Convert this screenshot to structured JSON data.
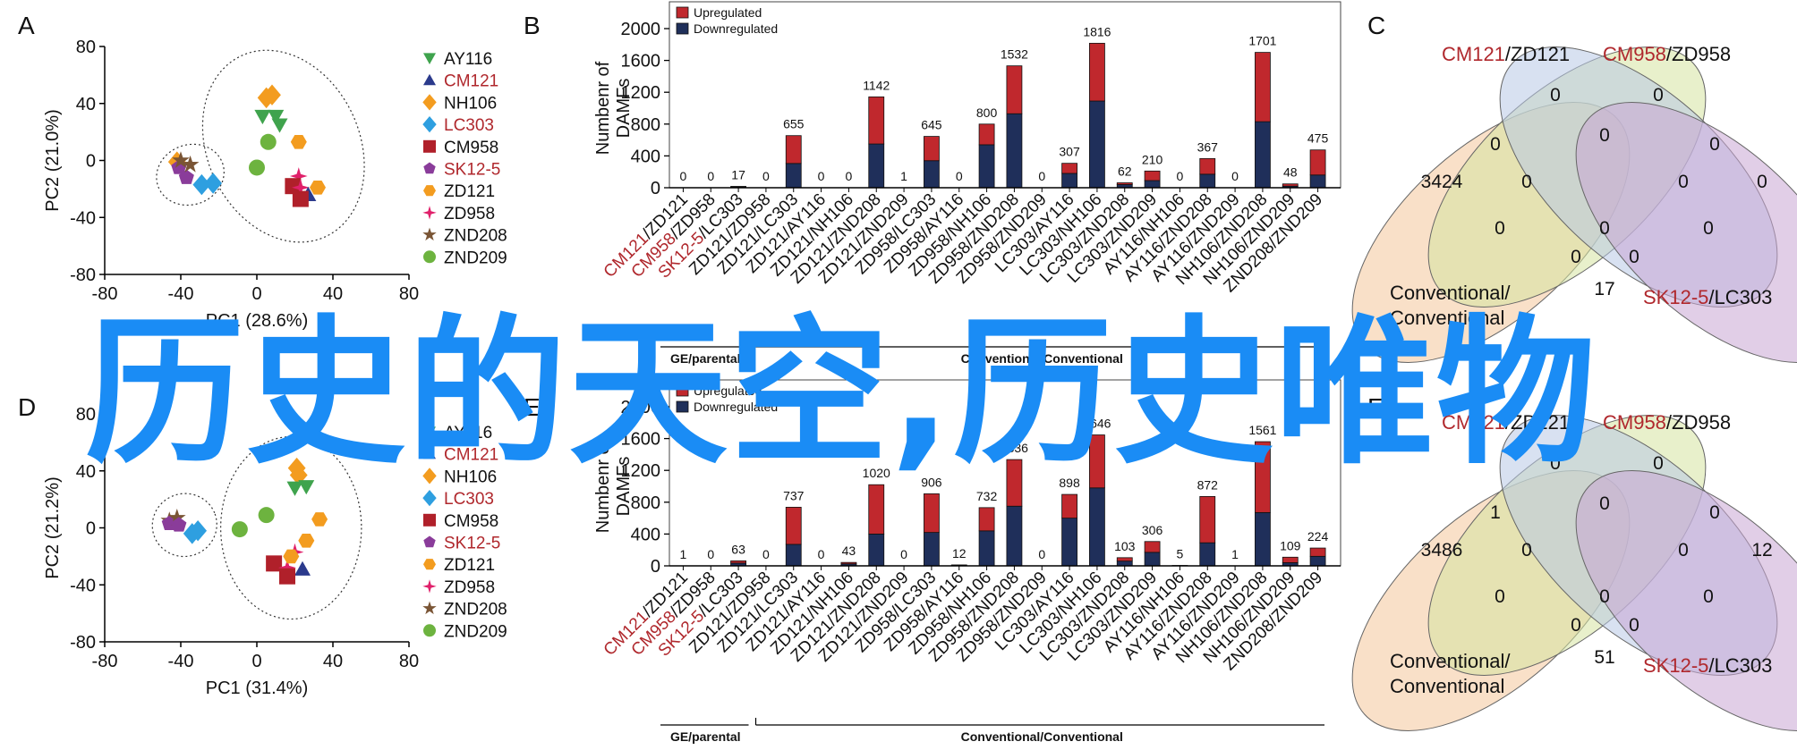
{
  "overlay_text": "历史的天空,历史唯物",
  "colors": {
    "red": "#c0282d",
    "navy": "#1f2f5a",
    "text_red": "#b0282d",
    "venn1": "#f4c69a",
    "venn2": "#d6e4a0",
    "venn3": "#b8c8e6",
    "venn4": "#c9a6d3"
  },
  "legend": [
    {
      "label": "AY116",
      "shape": "triangle-down",
      "color": "#3fa34d",
      "red": false
    },
    {
      "label": "CM121",
      "shape": "triangle-up",
      "color": "#2b3a8c",
      "red": true
    },
    {
      "label": "NH106",
      "shape": "diamond",
      "color": "#f39c1f",
      "red": false
    },
    {
      "label": "LC303",
      "shape": "diamond",
      "color": "#2e9fe0",
      "red": true
    },
    {
      "label": "CM958",
      "shape": "square",
      "color": "#b0202a",
      "red": false
    },
    {
      "label": "SK12-5",
      "shape": "pentagon",
      "color": "#8a3c9a",
      "red": true
    },
    {
      "label": "ZD121",
      "shape": "hexagon",
      "color": "#f39c1f",
      "red": false
    },
    {
      "label": "ZD958",
      "shape": "star4",
      "color": "#e0206a",
      "red": false
    },
    {
      "label": "ZND208",
      "shape": "star5",
      "color": "#7a5535",
      "red": false
    },
    {
      "label": "ZND209",
      "shape": "circle",
      "color": "#6db33f",
      "red": false
    }
  ],
  "bar_categories": [
    {
      "a": "CM121",
      "b": "ZD121",
      "red": true
    },
    {
      "a": "CM958",
      "b": "ZD958",
      "red": true
    },
    {
      "a": "SK12-5",
      "b": "LC303",
      "red": true
    },
    {
      "a": "ZD121",
      "b": "ZD958",
      "red": false
    },
    {
      "a": "ZD121",
      "b": "LC303",
      "red": false
    },
    {
      "a": "ZD121",
      "b": "AY116",
      "red": false
    },
    {
      "a": "ZD121",
      "b": "NH106",
      "red": false
    },
    {
      "a": "ZD121",
      "b": "ZND208",
      "red": false
    },
    {
      "a": "ZD121",
      "b": "ZND209",
      "red": false
    },
    {
      "a": "ZD958",
      "b": "LC303",
      "red": false
    },
    {
      "a": "ZD958",
      "b": "AY116",
      "red": false
    },
    {
      "a": "ZD958",
      "b": "NH106",
      "red": false
    },
    {
      "a": "ZD958",
      "b": "ZND208",
      "red": false
    },
    {
      "a": "ZD958",
      "b": "ZND209",
      "red": false
    },
    {
      "a": "LC303",
      "b": "AY116",
      "red": false
    },
    {
      "a": "LC303",
      "b": "NH106",
      "red": false
    },
    {
      "a": "LC303",
      "b": "ZND208",
      "red": false
    },
    {
      "a": "LC303",
      "b": "ZND209",
      "red": false
    },
    {
      "a": "AY116",
      "b": "NH106",
      "red": false
    },
    {
      "a": "AY116",
      "b": "ZND208",
      "red": false
    },
    {
      "a": "AY116",
      "b": "ZND209",
      "red": false
    },
    {
      "a": "NH106",
      "b": "ZND208",
      "red": false
    },
    {
      "a": "NH106",
      "b": "ZND209",
      "red": false
    },
    {
      "a": "ZND208",
      "b": "ZND209",
      "red": false
    }
  ],
  "chart_data": [
    {
      "panel": "A",
      "type": "scatter",
      "xlabel": "PC1 (28.6%)",
      "ylabel": "PC2 (21.0%)",
      "xlim": [
        -80,
        80
      ],
      "ylim": [
        -80,
        80
      ],
      "xticks": [
        -80,
        -40,
        0,
        40,
        80
      ],
      "yticks": [
        80,
        40,
        0,
        -40,
        -80
      ],
      "points": [
        {
          "s": 2,
          "x": -42,
          "y": -1
        },
        {
          "s": 5,
          "x": -41,
          "y": -5
        },
        {
          "s": 8,
          "x": -40,
          "y": 0
        },
        {
          "s": 5,
          "x": -37,
          "y": -12
        },
        {
          "s": 8,
          "x": -35,
          "y": -3
        },
        {
          "s": 3,
          "x": -29,
          "y": -17
        },
        {
          "s": 3,
          "x": -23,
          "y": -16
        },
        {
          "s": 2,
          "x": 8,
          "y": 46
        },
        {
          "s": 2,
          "x": 5,
          "y": 44
        },
        {
          "s": 0,
          "x": 3,
          "y": 31
        },
        {
          "s": 0,
          "x": 10,
          "y": 31
        },
        {
          "s": 0,
          "x": 12,
          "y": 25
        },
        {
          "s": 9,
          "x": 6,
          "y": 13
        },
        {
          "s": 9,
          "x": 0,
          "y": -5
        },
        {
          "s": 6,
          "x": 22,
          "y": 13
        },
        {
          "s": 7,
          "x": 22,
          "y": -11
        },
        {
          "s": 4,
          "x": 19,
          "y": -18
        },
        {
          "s": 7,
          "x": 23,
          "y": -19
        },
        {
          "s": 1,
          "x": 27,
          "y": -24
        },
        {
          "s": 6,
          "x": 32,
          "y": -19
        },
        {
          "s": 4,
          "x": 23,
          "y": -27
        }
      ],
      "clusters": [
        {
          "cx": -35,
          "cy": -10,
          "rx": 18,
          "ry": 21,
          "rot": -20
        },
        {
          "cx": 14,
          "cy": 10,
          "rx": 40,
          "ry": 70,
          "rot": -25
        }
      ]
    },
    {
      "panel": "B",
      "type": "bar",
      "ylabel": "Numbenr of DAMFs",
      "ylim": [
        0,
        2000
      ],
      "yticks": [
        0,
        400,
        800,
        1200,
        1600,
        2000
      ],
      "legend": [
        "Upregulated",
        "Downregulated"
      ],
      "totals": [
        0,
        0,
        17,
        0,
        655,
        0,
        0,
        1142,
        1,
        645,
        0,
        800,
        1532,
        0,
        307,
        1816,
        62,
        210,
        0,
        367,
        0,
        1701,
        48,
        475
      ],
      "series": [
        {
          "name": "Downregulated",
          "values": [
            0,
            0,
            10,
            0,
            305,
            0,
            0,
            550,
            0,
            340,
            0,
            540,
            930,
            0,
            180,
            1090,
            40,
            90,
            0,
            170,
            0,
            830,
            20,
            160
          ]
        },
        {
          "name": "Upregulated",
          "values": [
            0,
            0,
            7,
            0,
            350,
            0,
            0,
            592,
            1,
            305,
            0,
            260,
            602,
            0,
            127,
            726,
            22,
            120,
            0,
            197,
            0,
            871,
            28,
            315
          ]
        }
      ],
      "group_labels": [
        "GE/parental",
        "Conventional/Conventional"
      ]
    },
    {
      "panel": "C",
      "type": "venn",
      "sets": [
        {
          "a": "CM121",
          "b": "/ZD121"
        },
        {
          "a": "CM958",
          "b": "/ZD958"
        },
        {
          "a": "SK12-5",
          "b": "/LC303"
        }
      ],
      "fourth_set": [
        "Conventional/",
        "Conventional"
      ],
      "counts": {
        "n1": "3424",
        "n2": "0",
        "n3": "0",
        "n4": "0",
        "n12": "0",
        "n23": "0",
        "n34": "0",
        "n123": "0",
        "n234": "0",
        "n13": "0",
        "n24": "0",
        "n124": "0",
        "n134": "0",
        "n1234": "0",
        "n14": "17"
      }
    },
    {
      "panel": "D",
      "type": "scatter",
      "xlabel": "PC1 (31.4%)",
      "ylabel": "PC2 (21.2%)",
      "xlim": [
        -80,
        80
      ],
      "ylim": [
        -80,
        80
      ],
      "xticks": [
        -80,
        -40,
        0,
        40,
        80
      ],
      "yticks": [
        80,
        40,
        0,
        -40,
        -80
      ],
      "points": [
        {
          "s": 8,
          "x": -46,
          "y": 5
        },
        {
          "s": 5,
          "x": -46,
          "y": 3
        },
        {
          "s": 8,
          "x": -42,
          "y": 7
        },
        {
          "s": 5,
          "x": -41,
          "y": 2
        },
        {
          "s": 3,
          "x": -34,
          "y": -4
        },
        {
          "s": 3,
          "x": -31,
          "y": -2
        },
        {
          "s": 2,
          "x": 21,
          "y": 42
        },
        {
          "s": 2,
          "x": 22,
          "y": 37
        },
        {
          "s": 0,
          "x": 20,
          "y": 28
        },
        {
          "s": 0,
          "x": 26,
          "y": 29
        },
        {
          "s": 6,
          "x": 33,
          "y": 6
        },
        {
          "s": 6,
          "x": 26,
          "y": -9
        },
        {
          "s": 9,
          "x": 5,
          "y": 9
        },
        {
          "s": 9,
          "x": -9,
          "y": -1
        },
        {
          "s": 7,
          "x": 20,
          "y": -17
        },
        {
          "s": 4,
          "x": 9,
          "y": -25
        },
        {
          "s": 7,
          "x": 16,
          "y": -28
        },
        {
          "s": 1,
          "x": 24,
          "y": -29
        },
        {
          "s": 4,
          "x": 16,
          "y": -34
        },
        {
          "s": 6,
          "x": 18,
          "y": -20
        }
      ],
      "clusters": [
        {
          "cx": -38,
          "cy": 2,
          "rx": 17,
          "ry": 22,
          "rot": -20
        },
        {
          "cx": 18,
          "cy": 0,
          "rx": 37,
          "ry": 64,
          "rot": 0
        }
      ]
    },
    {
      "panel": "E",
      "type": "bar",
      "ylabel": "Numbenr of DAMFs",
      "ylim": [
        0,
        2000
      ],
      "yticks": [
        0,
        400,
        800,
        1200,
        1600,
        2000
      ],
      "legend": [
        "Upregulated",
        "Downregulated"
      ],
      "totals": [
        1,
        0,
        63,
        0,
        737,
        0,
        43,
        1020,
        0,
        906,
        12,
        732,
        1336,
        0,
        898,
        1646,
        103,
        306,
        5,
        872,
        1,
        1561,
        109,
        224
      ],
      "series": [
        {
          "name": "Downregulated",
          "values": [
            0,
            0,
            35,
            0,
            270,
            0,
            25,
            400,
            0,
            420,
            6,
            440,
            750,
            0,
            600,
            980,
            60,
            170,
            2,
            290,
            0,
            670,
            40,
            120
          ]
        },
        {
          "name": "Upregulated",
          "values": [
            1,
            0,
            28,
            0,
            467,
            0,
            18,
            620,
            0,
            486,
            6,
            292,
            586,
            0,
            298,
            666,
            43,
            136,
            3,
            582,
            1,
            891,
            69,
            104
          ]
        }
      ],
      "group_labels": [
        "GE/parental",
        "Conventional/Conventional"
      ]
    },
    {
      "panel": "F",
      "type": "venn",
      "sets": [
        {
          "a": "CM121",
          "b": "/ZD121"
        },
        {
          "a": "CM958",
          "b": "/ZD958"
        },
        {
          "a": "SK12-5",
          "b": "/LC303"
        }
      ],
      "fourth_set": [
        "Conventional/",
        "Conventional"
      ],
      "counts": {
        "n1": "3486",
        "n2": "0",
        "n3": "0",
        "n4": "12",
        "n12": "1",
        "n23": "0",
        "n34": "0",
        "n123": "0",
        "n234": "0",
        "n13": "0",
        "n24": "0",
        "n124": "0",
        "n134": "0",
        "n1234": "0",
        "n14": "51"
      }
    }
  ]
}
